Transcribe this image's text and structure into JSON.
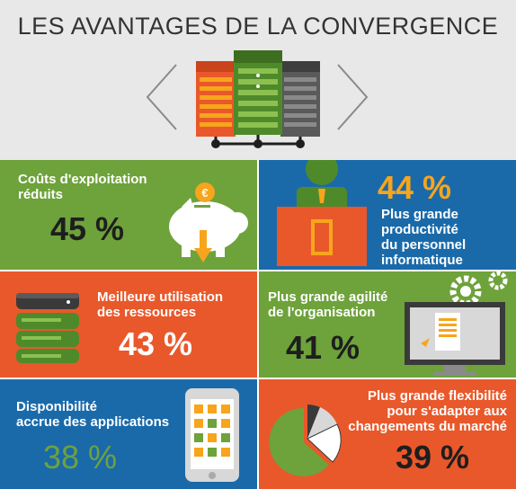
{
  "header": {
    "title": "LES AVANTAGES DE LA CONVERGENCE"
  },
  "colors": {
    "green": "#6ea23b",
    "blue": "#1a6aaa",
    "orange": "#e9582a",
    "yellow": "#f7a51c",
    "header_bg": "#e8e8e8",
    "dark": "#1e1e1e",
    "white": "#ffffff"
  },
  "panels": [
    {
      "id": "couts",
      "title_lines": [
        "Coûts d'exploitation",
        "réduits"
      ],
      "percent": "45 %",
      "percent_color": "#1e1e1e",
      "icon": "piggy-bank-euro-icon"
    },
    {
      "id": "productivite",
      "title_lines": [
        "Plus grande",
        "productivité",
        "du personnel",
        "informatique"
      ],
      "percent": "44 %",
      "percent_color": "#f7a51c",
      "icon": "person-at-desk-icon"
    },
    {
      "id": "ressources",
      "title_lines": [
        "Meilleure utilisation",
        "des ressources"
      ],
      "percent": "43 %",
      "percent_color": "#ffffff",
      "icon": "server-stack-icon"
    },
    {
      "id": "agilite",
      "title_lines": [
        "Plus grande agilité",
        "de l'organisation"
      ],
      "percent": "41 %",
      "percent_color": "#1e1e1e",
      "icon": "monitor-gears-icon"
    },
    {
      "id": "disponibilite",
      "title_lines": [
        "Disponibilité",
        "accrue des applications"
      ],
      "percent": "38 %",
      "percent_color": "#6ea23b",
      "icon": "smartphone-apps-icon"
    },
    {
      "id": "flexibilite",
      "title_lines": [
        "Plus grande flexibilité",
        "pour s'adapter aux",
        "changements du marché"
      ],
      "percent": "39 %",
      "percent_color": "#1e1e1e",
      "icon": "pie-chart-icon"
    }
  ]
}
